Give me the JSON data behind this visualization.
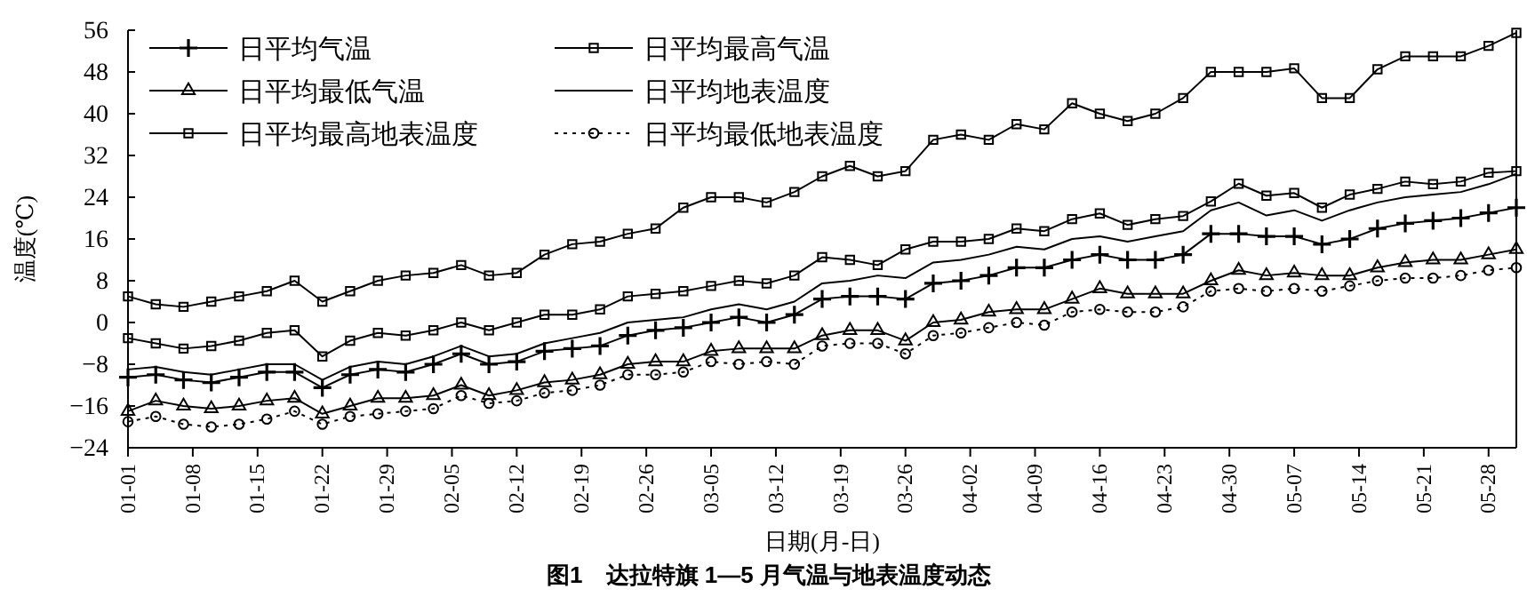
{
  "chart_data": {
    "type": "line",
    "title": "图1　达拉特旗 1—5 月气温与地表温度动态",
    "xlabel": "日期(月-日)",
    "ylabel": "温度(℃)",
    "x": [
      "--01-01",
      "--01-04",
      "--01-07",
      "--01-10",
      "--01-13",
      "--01-16",
      "--01-19",
      "--01-22",
      "--01-25",
      "--01-28",
      "--01-31",
      "--02-03",
      "--02-06",
      "--02-09",
      "--02-12",
      "--02-15",
      "--02-18",
      "--02-21",
      "--02-24",
      "--02-27",
      "--03-02",
      "--03-05",
      "--03-08",
      "--03-11",
      "--03-14",
      "--03-17",
      "--03-20",
      "--03-23",
      "--03-26",
      "--03-29",
      "--04-01",
      "--04-04",
      "--04-07",
      "--04-10",
      "--04-13",
      "--04-16",
      "--04-19",
      "--04-22",
      "--04-25",
      "--04-28",
      "--05-01",
      "--05-04",
      "--05-07",
      "--05-10",
      "--05-13",
      "--05-16",
      "--05-19",
      "--05-22",
      "--05-25",
      "--05-28",
      "--05-31"
    ],
    "series": [
      {
        "name": "日平均气温",
        "color": "#000000",
        "marker": "cross",
        "line_style": "solid",
        "values": [
          -10.5,
          -10,
          -11,
          -11.5,
          -10.5,
          -9.5,
          -9.5,
          -12.5,
          -10,
          -9,
          -9.5,
          -8,
          -6,
          -8,
          -7.5,
          -5.5,
          -5,
          -4.5,
          -2.5,
          -1.5,
          -1,
          0,
          1,
          0,
          1.5,
          4.5,
          5,
          5,
          4.5,
          7.5,
          8,
          9,
          10.5,
          10.5,
          12,
          13,
          12,
          12,
          13,
          17,
          17,
          16.5,
          16.5,
          15,
          16,
          18,
          19,
          19.5,
          20,
          21,
          22
        ]
      },
      {
        "name": "日平均最高气温",
        "color": "#000000",
        "marker": "square",
        "line_style": "solid",
        "values": [
          -3,
          -4,
          -5,
          -4.5,
          -3.5,
          -2,
          -1.5,
          -6.5,
          -3.5,
          -2,
          -2.5,
          -1.5,
          0,
          -1.5,
          0,
          1.5,
          1.5,
          2.5,
          5,
          5.5,
          6,
          7,
          8,
          7.5,
          9,
          12.5,
          12,
          11,
          14,
          15.5,
          15.5,
          16,
          18,
          17.5,
          19.8,
          20.9,
          18.7,
          19.8,
          20.4,
          23.2,
          26.6,
          24.3,
          24.8,
          22,
          24.5,
          25.6,
          27,
          26.5,
          27,
          28.7,
          29
        ]
      },
      {
        "name": "日平均最低气温",
        "color": "#000000",
        "marker": "triangle",
        "line_style": "solid",
        "values": [
          -17,
          -15,
          -16,
          -16.5,
          -16,
          -15,
          -14.5,
          -17.5,
          -16,
          -14.5,
          -14.5,
          -14,
          -12,
          -14,
          -13,
          -11.5,
          -11,
          -10,
          -8,
          -7.5,
          -7.5,
          -5.5,
          -5,
          -5,
          -5,
          -2.5,
          -1.5,
          -1.5,
          -3.5,
          0,
          0.5,
          2,
          2.5,
          2.5,
          4.5,
          6.5,
          5.5,
          5.5,
          5.5,
          8,
          10,
          9,
          9.5,
          9,
          9,
          10.5,
          11.5,
          12,
          12,
          13,
          14
        ]
      },
      {
        "name": "日平均地表温度",
        "color": "#000000",
        "marker": "none",
        "line_style": "solid",
        "values": [
          -9,
          -8.5,
          -9.5,
          -10,
          -9,
          -8,
          -8,
          -11,
          -8.5,
          -7.5,
          -8,
          -6.5,
          -4.5,
          -6.5,
          -6,
          -4,
          -3,
          -2,
          0,
          0.5,
          1,
          2.5,
          3.5,
          2.5,
          4,
          7.5,
          8,
          9,
          8.5,
          11.5,
          12,
          13,
          14.5,
          14,
          16,
          16.5,
          15.5,
          16.5,
          17.5,
          21.5,
          23,
          20.5,
          21.5,
          19.5,
          21.5,
          23,
          24,
          24.5,
          25,
          26.5,
          28.5
        ]
      },
      {
        "name": "日平均最高地表温度",
        "color": "#000000",
        "marker": "square",
        "line_style": "solid",
        "values": [
          5,
          3.5,
          3,
          4,
          5,
          6,
          8,
          4,
          6,
          8,
          9,
          9.5,
          11,
          9,
          9.5,
          13,
          15,
          15.5,
          17,
          18,
          22,
          24,
          24,
          23,
          25,
          28,
          30,
          28,
          29,
          35,
          36,
          35,
          38,
          37,
          42,
          40,
          38.6,
          40,
          43,
          48,
          48,
          48,
          48.7,
          43,
          43,
          48.5,
          51,
          51,
          51,
          53,
          55.5
        ]
      },
      {
        "name": "日平均最低地表温度",
        "color": "#000000",
        "marker": "circle",
        "line_style": "dotted",
        "values": [
          -19,
          -18,
          -19.5,
          -20,
          -19.5,
          -18.5,
          -17,
          -19.5,
          -18,
          -17.5,
          -17,
          -16.5,
          -14,
          -15.5,
          -15,
          -13.5,
          -13,
          -12,
          -10,
          -10,
          -9.5,
          -7.5,
          -8,
          -7.5,
          -8,
          -4.5,
          -4,
          -4,
          -6,
          -2.5,
          -2,
          -1,
          0,
          -0.5,
          2,
          2.5,
          2,
          2,
          3,
          6,
          6.5,
          6,
          6.5,
          6,
          7,
          8,
          8.5,
          8.5,
          9,
          10,
          10.5
        ]
      }
    ],
    "xlim": [
      "--01-01",
      "--05-31"
    ],
    "xticks": [
      {
        "value": "--01-01",
        "label": "01-01"
      },
      {
        "value": "--01-08",
        "label": "01-08"
      },
      {
        "value": "--01-15",
        "label": "01-15"
      },
      {
        "value": "--01-22",
        "label": "01-22"
      },
      {
        "value": "--01-29",
        "label": "01-29"
      },
      {
        "value": "--02-05",
        "label": "02-05"
      },
      {
        "value": "--02-12",
        "label": "02-12"
      },
      {
        "value": "--02-19",
        "label": "02-19"
      },
      {
        "value": "--02-26",
        "label": "02-26"
      },
      {
        "value": "--03-05",
        "label": "03-05"
      },
      {
        "value": "--03-12",
        "label": "03-12"
      },
      {
        "value": "--03-19",
        "label": "03-19"
      },
      {
        "value": "--03-26",
        "label": "03-26"
      },
      {
        "value": "--04-02",
        "label": "04-02"
      },
      {
        "value": "--04-09",
        "label": "04-09"
      },
      {
        "value": "--04-16",
        "label": "04-16"
      },
      {
        "value": "--04-23",
        "label": "04-23"
      },
      {
        "value": "--04-30",
        "label": "04-30"
      },
      {
        "value": "--05-07",
        "label": "05-07"
      },
      {
        "value": "--05-14",
        "label": "05-14"
      },
      {
        "value": "--05-21",
        "label": "05-21"
      },
      {
        "value": "--05-28",
        "label": "05-28"
      }
    ],
    "ylim": [
      -24,
      56
    ],
    "yticks": [
      -24,
      -16,
      -8,
      0,
      8,
      16,
      24,
      32,
      40,
      48,
      56
    ],
    "grid": false,
    "legend": "top left"
  }
}
